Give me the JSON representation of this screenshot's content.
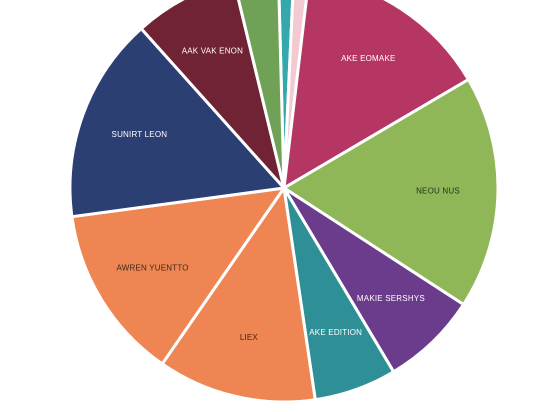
{
  "chart_data": {
    "type": "pie",
    "title": "",
    "start_angle_deg": -1.5,
    "direction": "clockwise",
    "slices": [
      {
        "label": "",
        "sublabel": "",
        "value": 1.2,
        "color": "#34a8ad"
      },
      {
        "label": "",
        "sublabel": "",
        "value": 1.2,
        "color": "#f3c9d2"
      },
      {
        "label": "AKE EOMAKE",
        "sublabel": "",
        "value": 15.3,
        "color": "#b53662",
        "text_color": "#ffffff"
      },
      {
        "label": "NEOU NUS",
        "sublabel": "",
        "value": 18.4,
        "color": "#8fb657",
        "text_color": "#22331a"
      },
      {
        "label": "MAKIE SERSHYS",
        "sublabel": "",
        "value": 7.6,
        "color": "#6b3c8c",
        "text_color": "#ffffff"
      },
      {
        "label": "AKE EDITION",
        "sublabel": "",
        "value": 6.5,
        "color": "#2f8f96",
        "text_color": "#ffffff"
      },
      {
        "label": "LIEX",
        "sublabel": "",
        "value": 12.5,
        "color": "#ee8552",
        "text_color": "#3a2a1c"
      },
      {
        "label": "AWREN YUENTTO",
        "sublabel": "",
        "value": 13.8,
        "color": "#ee8552",
        "text_color": "#3a2a1c"
      },
      {
        "label": "SUNIRT LEON",
        "sublabel": "",
        "value": 16.2,
        "color": "#2b3f73",
        "text_color": "#ffffff"
      },
      {
        "label": "AAK VAK ENON",
        "sublabel": "",
        "value": 8.2,
        "color": "#6f2334",
        "text_color": "#ffffff"
      },
      {
        "label": "",
        "sublabel": "",
        "value": 3.5,
        "color": "#6fa257"
      }
    ]
  },
  "colors": {
    "background": "#ffffff",
    "slice_border": "#ffffff"
  }
}
